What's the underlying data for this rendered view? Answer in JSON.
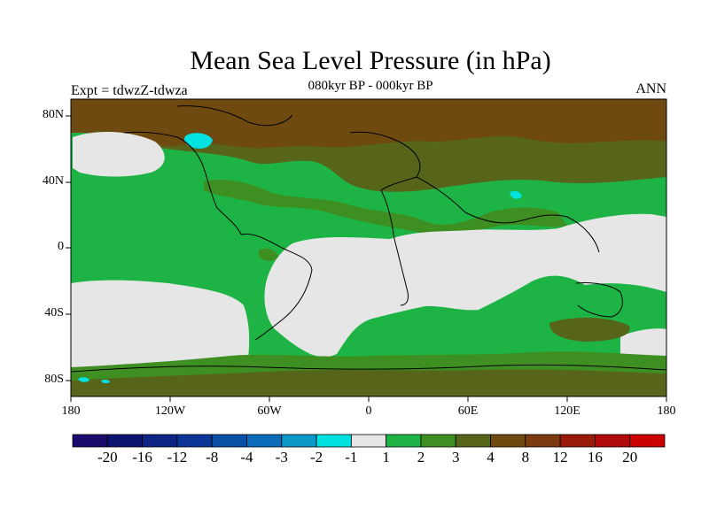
{
  "title": "Mean Sea Level Pressure (in hPa)",
  "subtitle": "080kyr BP - 000kyr BP",
  "left_label": "Expt = tdwzZ-tdwza",
  "right_label": "ANN",
  "map": {
    "projection": "equirectangular",
    "lon_range": [
      -180,
      180
    ],
    "lat_range": [
      -90,
      90
    ],
    "lat_ticks": [
      "80N",
      "40N",
      "0",
      "40S",
      "80S"
    ],
    "lon_ticks": [
      "180",
      "120W",
      "60W",
      "0",
      "60E",
      "120E",
      "180"
    ]
  },
  "colorbar": {
    "labels": [
      "-20",
      "-16",
      "-12",
      "-8",
      "-4",
      "-3",
      "-2",
      "-1",
      "1",
      "2",
      "3",
      "4",
      "8",
      "12",
      "16",
      "20"
    ],
    "colors": [
      "#1a0a6b",
      "#0b146e",
      "#0d2484",
      "#0c3597",
      "#0a4fa6",
      "#0b6cbb",
      "#0a98c9",
      "#00e1e1",
      "#e6e6e6",
      "#1eb445",
      "#3e8f22",
      "#56651a",
      "#6f4a10",
      "#7b3a10",
      "#9a1a0a",
      "#b30b0b",
      "#cc0000"
    ]
  },
  "regions_legend": {
    "neutral": "#e6e6e6",
    "positive_small": "#1eb445",
    "positive_mid": "#3e8f22",
    "positive_high": "#56651a",
    "positive_higher": "#6f4a10",
    "negative_small": "#00e1e1"
  }
}
